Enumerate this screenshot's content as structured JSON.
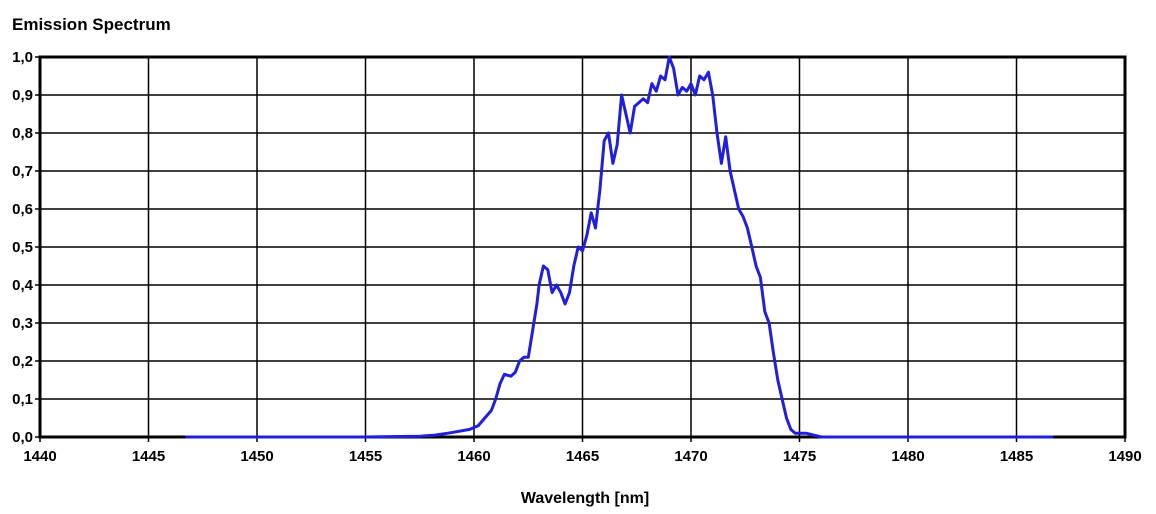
{
  "chart_data": {
    "type": "line",
    "title": "Emission Spectrum",
    "xlabel": "Wavelength [nm]",
    "ylabel": "",
    "xlim": [
      1440,
      1490
    ],
    "ylim": [
      0,
      1.0
    ],
    "grid": true,
    "legend": "none",
    "x_ticks": [
      "1440",
      "1445",
      "1450",
      "1455",
      "1460",
      "1465",
      "1470",
      "1475",
      "1480",
      "1485",
      "1490"
    ],
    "y_ticks": [
      "0,0",
      "0,1",
      "0,2",
      "0,3",
      "0,4",
      "0,5",
      "0,6",
      "0,7",
      "0,8",
      "0,9",
      "1,0"
    ],
    "line_color": "#1f1fdd",
    "series": [
      {
        "x": [
          1446.7,
          1450,
          1455,
          1457.5,
          1458.2,
          1458.8,
          1459.3,
          1459.8,
          1460.2,
          1460.5,
          1460.8,
          1461.0,
          1461.2,
          1461.4,
          1461.7,
          1461.9,
          1462.1,
          1462.3,
          1462.5,
          1462.7,
          1462.9,
          1463.0,
          1463.2,
          1463.4,
          1463.6,
          1463.8,
          1464.0,
          1464.2,
          1464.4,
          1464.6,
          1464.8,
          1465.0,
          1465.2,
          1465.4,
          1465.6,
          1465.8,
          1466.0,
          1466.2,
          1466.4,
          1466.6,
          1466.8,
          1467.0,
          1467.2,
          1467.4,
          1467.6,
          1467.8,
          1468.0,
          1468.2,
          1468.4,
          1468.6,
          1468.8,
          1469.0,
          1469.2,
          1469.4,
          1469.6,
          1469.8,
          1470.0,
          1470.2,
          1470.4,
          1470.6,
          1470.8,
          1471.0,
          1471.2,
          1471.4,
          1471.6,
          1471.8,
          1472.0,
          1472.2,
          1472.4,
          1472.6,
          1472.8,
          1473.0,
          1473.2,
          1473.4,
          1473.6,
          1473.8,
          1474.0,
          1474.2,
          1474.4,
          1474.6,
          1474.8,
          1475.0,
          1475.3,
          1476,
          1480,
          1486.7
        ],
        "y": [
          0.0,
          0.0,
          0.0,
          0.002,
          0.005,
          0.01,
          0.015,
          0.02,
          0.03,
          0.05,
          0.07,
          0.1,
          0.14,
          0.165,
          0.16,
          0.17,
          0.2,
          0.21,
          0.21,
          0.28,
          0.35,
          0.4,
          0.45,
          0.44,
          0.38,
          0.4,
          0.38,
          0.35,
          0.38,
          0.45,
          0.5,
          0.49,
          0.53,
          0.59,
          0.55,
          0.65,
          0.78,
          0.8,
          0.72,
          0.77,
          0.9,
          0.85,
          0.8,
          0.87,
          0.88,
          0.89,
          0.88,
          0.93,
          0.91,
          0.95,
          0.94,
          1.0,
          0.97,
          0.9,
          0.92,
          0.91,
          0.93,
          0.9,
          0.95,
          0.94,
          0.96,
          0.9,
          0.8,
          0.72,
          0.79,
          0.7,
          0.65,
          0.6,
          0.58,
          0.55,
          0.5,
          0.45,
          0.42,
          0.33,
          0.3,
          0.22,
          0.15,
          0.1,
          0.05,
          0.02,
          0.01,
          0.01,
          0.01,
          0.0,
          0.0,
          0.0
        ]
      }
    ]
  }
}
